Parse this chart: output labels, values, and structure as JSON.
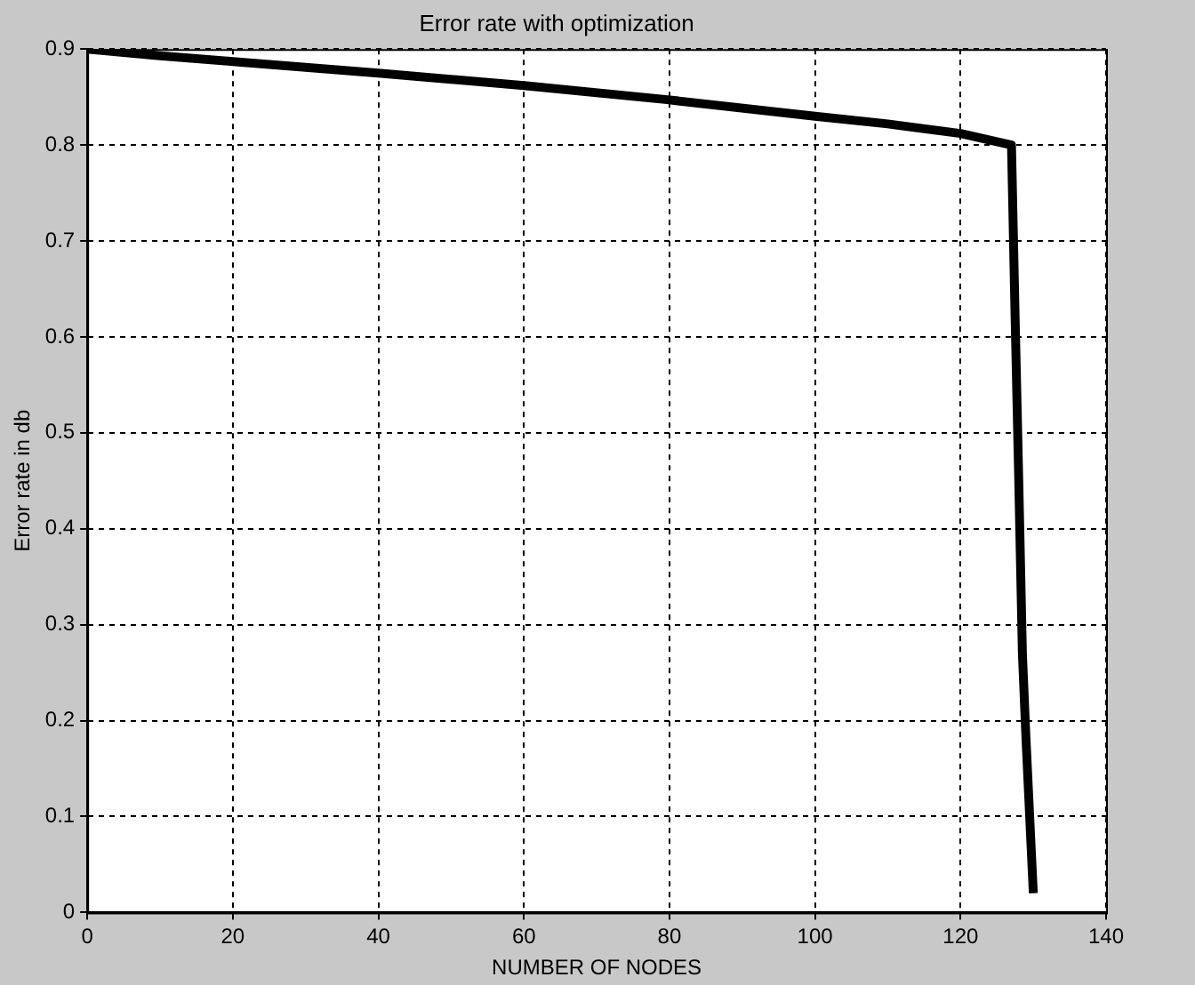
{
  "chart_data": {
    "type": "line",
    "title": "Error rate with optimization",
    "xlabel": "NUMBER OF NODES",
    "ylabel": "Error rate in db",
    "x": [
      0,
      10,
      20,
      40,
      60,
      80,
      100,
      110,
      120,
      127,
      127.5,
      128,
      128.5,
      129,
      130
    ],
    "series": [
      {
        "color": "#000000",
        "values": [
          0.9,
          0.893,
          0.887,
          0.875,
          0.862,
          0.847,
          0.83,
          0.822,
          0.812,
          0.8,
          0.62,
          0.45,
          0.27,
          0.18,
          0.02
        ]
      }
    ],
    "xlim": [
      0,
      140
    ],
    "xticks": [
      0,
      20,
      40,
      60,
      80,
      100,
      120,
      140
    ],
    "ylim": [
      0,
      0.9
    ],
    "yticks": [
      0,
      0.1,
      0.2,
      0.3,
      0.4,
      0.5,
      0.6,
      0.7,
      0.8,
      0.9
    ],
    "grid": true,
    "legend": false,
    "marker": "none",
    "line_style": "solid"
  }
}
